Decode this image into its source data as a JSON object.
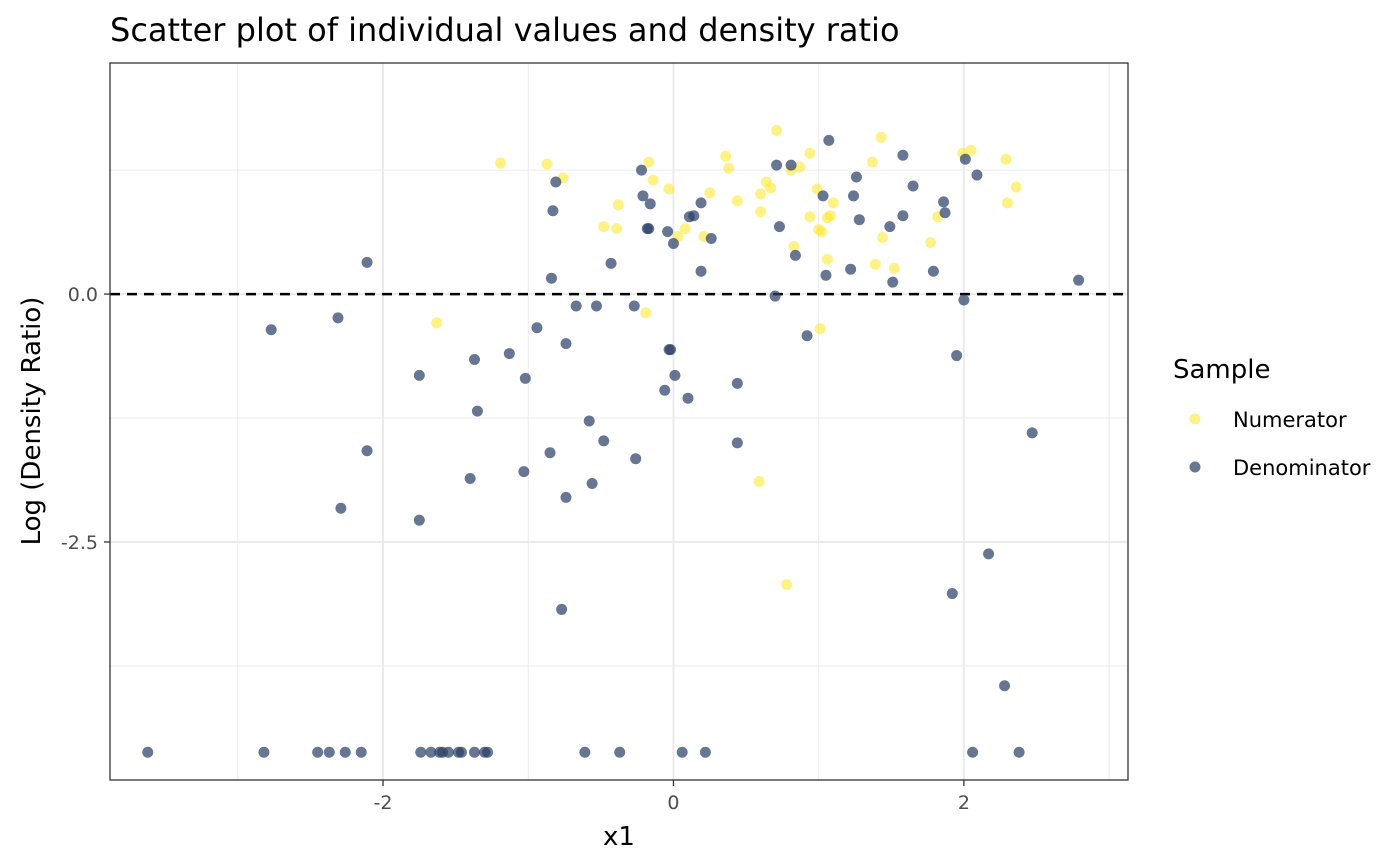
{
  "chart_data": {
    "type": "scatter",
    "title": "Scatter plot of individual values and density ratio",
    "xlabel": "x1",
    "ylabel": "Log (Density Ratio)",
    "xlim": [
      -3.88,
      3.13
    ],
    "ylim": [
      -4.9,
      2.33
    ],
    "x_ticks": [
      -2,
      0,
      2
    ],
    "x_tick_labels": [
      "-2",
      "0",
      "2"
    ],
    "y_ticks": [
      0,
      -2.5
    ],
    "y_tick_labels": [
      "0.0",
      "-2.5"
    ],
    "x_minor_gridlines": [
      -3,
      -1,
      1,
      3
    ],
    "y_minor_gridlines": [
      1.25,
      -1.25,
      -3.75
    ],
    "grid": true,
    "reference_line": {
      "y": 0,
      "style": "dashed"
    },
    "legend": {
      "title": "Sample",
      "position": "right"
    },
    "series": [
      {
        "name": "Numerator",
        "color": "#FDE725",
        "points": [
          [
            -1.19,
            1.32
          ],
          [
            -0.87,
            1.31
          ],
          [
            -0.76,
            1.17
          ],
          [
            -0.38,
            0.9
          ],
          [
            -0.48,
            0.68
          ],
          [
            -0.39,
            0.66
          ],
          [
            -0.17,
            1.33
          ],
          [
            -0.14,
            1.15
          ],
          [
            -0.03,
            1.06
          ],
          [
            0.03,
            0.58
          ],
          [
            0.08,
            0.66
          ],
          [
            0.21,
            0.58
          ],
          [
            0.25,
            1.02
          ],
          [
            0.36,
            1.39
          ],
          [
            0.38,
            1.27
          ],
          [
            0.44,
            0.94
          ],
          [
            0.6,
            1.01
          ],
          [
            0.6,
            0.83
          ],
          [
            0.64,
            1.13
          ],
          [
            0.67,
            1.07
          ],
          [
            0.71,
            1.65
          ],
          [
            0.81,
            1.25
          ],
          [
            0.87,
            1.28
          ],
          [
            0.94,
            1.42
          ],
          [
            0.94,
            0.78
          ],
          [
            0.99,
            1.06
          ],
          [
            1.0,
            0.65
          ],
          [
            1.02,
            0.63
          ],
          [
            1.06,
            0.77
          ],
          [
            1.08,
            0.79
          ],
          [
            1.1,
            0.92
          ],
          [
            1.06,
            0.35
          ],
          [
            0.83,
            0.48
          ],
          [
            1.37,
            1.33
          ],
          [
            1.43,
            1.58
          ],
          [
            1.44,
            0.57
          ],
          [
            1.39,
            0.3
          ],
          [
            1.52,
            0.26
          ],
          [
            1.77,
            0.52
          ],
          [
            1.82,
            0.78
          ],
          [
            1.99,
            1.42
          ],
          [
            2.05,
            1.45
          ],
          [
            2.29,
            1.36
          ],
          [
            2.3,
            0.92
          ],
          [
            2.36,
            1.08
          ],
          [
            -1.63,
            -0.29
          ],
          [
            -0.19,
            -0.19
          ],
          [
            1.01,
            -0.35
          ],
          [
            0.59,
            -1.89
          ],
          [
            0.78,
            -2.93
          ]
        ]
      },
      {
        "name": "Denominator",
        "color": "#2C4168",
        "points": [
          [
            -2.11,
            0.32
          ],
          [
            -2.77,
            -0.36
          ],
          [
            -2.31,
            -0.24
          ],
          [
            -2.11,
            -1.58
          ],
          [
            -2.29,
            -2.16
          ],
          [
            -1.75,
            -0.82
          ],
          [
            -1.75,
            -2.28
          ],
          [
            -1.37,
            -0.66
          ],
          [
            -1.35,
            -1.18
          ],
          [
            -1.4,
            -1.86
          ],
          [
            -1.13,
            -0.6
          ],
          [
            -1.02,
            -0.85
          ],
          [
            -1.03,
            -1.79
          ],
          [
            -0.94,
            -0.34
          ],
          [
            -0.85,
            -1.6
          ],
          [
            -0.84,
            0.16
          ],
          [
            -0.83,
            0.84
          ],
          [
            -0.81,
            1.13
          ],
          [
            -0.74,
            -0.5
          ],
          [
            -0.74,
            -2.05
          ],
          [
            -0.77,
            -3.18
          ],
          [
            -0.67,
            -0.12
          ],
          [
            -0.58,
            -1.28
          ],
          [
            -0.56,
            -1.91
          ],
          [
            -0.53,
            -0.12
          ],
          [
            -0.48,
            -1.48
          ],
          [
            -0.43,
            0.31
          ],
          [
            -0.27,
            -0.12
          ],
          [
            -0.26,
            -1.66
          ],
          [
            -0.22,
            1.25
          ],
          [
            -0.21,
            0.99
          ],
          [
            -0.18,
            0.66
          ],
          [
            -0.17,
            0.66
          ],
          [
            -0.16,
            0.91
          ],
          [
            -0.06,
            -0.97
          ],
          [
            -0.04,
            0.63
          ],
          [
            -0.03,
            -0.56
          ],
          [
            -0.02,
            -0.56
          ],
          [
            0.0,
            0.51
          ],
          [
            0.01,
            -0.82
          ],
          [
            0.1,
            -1.05
          ],
          [
            0.11,
            0.78
          ],
          [
            0.14,
            0.79
          ],
          [
            0.19,
            0.92
          ],
          [
            0.19,
            0.23
          ],
          [
            0.26,
            0.56
          ],
          [
            0.44,
            -0.9
          ],
          [
            0.44,
            -1.5
          ],
          [
            0.7,
            -0.02
          ],
          [
            0.71,
            1.3
          ],
          [
            0.73,
            0.68
          ],
          [
            0.81,
            1.3
          ],
          [
            0.84,
            0.39
          ],
          [
            0.92,
            -0.42
          ],
          [
            1.03,
            0.99
          ],
          [
            1.05,
            0.19
          ],
          [
            1.07,
            1.55
          ],
          [
            1.22,
            0.25
          ],
          [
            1.24,
            0.99
          ],
          [
            1.26,
            1.18
          ],
          [
            1.28,
            0.75
          ],
          [
            1.49,
            0.68
          ],
          [
            1.51,
            0.12
          ],
          [
            1.58,
            0.79
          ],
          [
            1.58,
            1.4
          ],
          [
            1.65,
            1.09
          ],
          [
            1.79,
            0.23
          ],
          [
            1.86,
            0.93
          ],
          [
            1.87,
            0.82
          ],
          [
            2.0,
            -0.06
          ],
          [
            2.01,
            1.36
          ],
          [
            2.09,
            1.2
          ],
          [
            1.95,
            -0.62
          ],
          [
            2.79,
            0.14
          ],
          [
            2.47,
            -1.4
          ],
          [
            2.17,
            -2.62
          ],
          [
            1.92,
            -3.02
          ],
          [
            2.28,
            -3.95
          ],
          [
            -3.62,
            -4.62
          ],
          [
            -2.82,
            -4.62
          ],
          [
            -2.45,
            -4.62
          ],
          [
            -2.37,
            -4.62
          ],
          [
            -2.26,
            -4.62
          ],
          [
            -2.15,
            -4.62
          ],
          [
            -1.74,
            -4.62
          ],
          [
            -1.67,
            -4.62
          ],
          [
            -1.61,
            -4.62
          ],
          [
            -1.59,
            -4.62
          ],
          [
            -1.55,
            -4.62
          ],
          [
            -1.48,
            -4.62
          ],
          [
            -1.46,
            -4.62
          ],
          [
            -1.37,
            -4.62
          ],
          [
            -1.3,
            -4.62
          ],
          [
            -1.28,
            -4.62
          ],
          [
            -0.61,
            -4.62
          ],
          [
            -0.37,
            -4.62
          ],
          [
            0.06,
            -4.62
          ],
          [
            0.22,
            -4.62
          ],
          [
            2.06,
            -4.62
          ],
          [
            2.38,
            -4.62
          ]
        ]
      }
    ]
  }
}
